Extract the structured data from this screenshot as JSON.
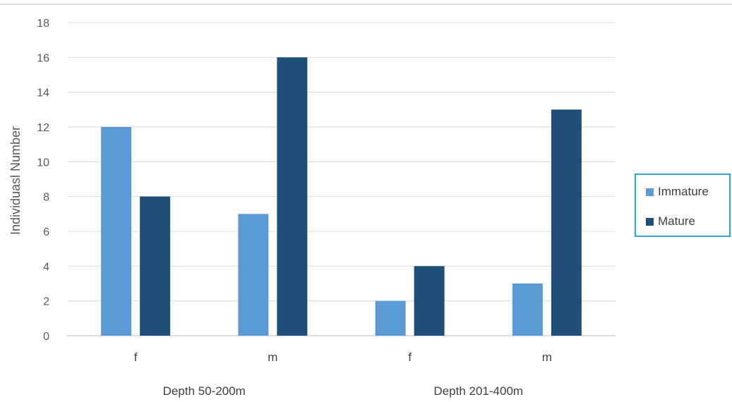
{
  "chart_data": {
    "type": "bar",
    "groups": [
      "Depth 50-200m",
      "Depth 201-400m"
    ],
    "categories": [
      "f",
      "m",
      "f",
      "m"
    ],
    "category_group": [
      0,
      0,
      1,
      1
    ],
    "series": [
      {
        "name": "Immature",
        "color": "#5b9bd5",
        "values": [
          12,
          7,
          2,
          3
        ]
      },
      {
        "name": "Mature",
        "color": "#1f4e79",
        "values": [
          8,
          16,
          4,
          13
        ]
      }
    ],
    "title": "",
    "xlabel": "",
    "ylabel": "Individuasl Number",
    "ylim": [
      0,
      18
    ],
    "yticks": [
      0,
      2,
      4,
      6,
      8,
      10,
      12,
      14,
      16,
      18
    ],
    "grid": true,
    "legend_position": "right"
  }
}
